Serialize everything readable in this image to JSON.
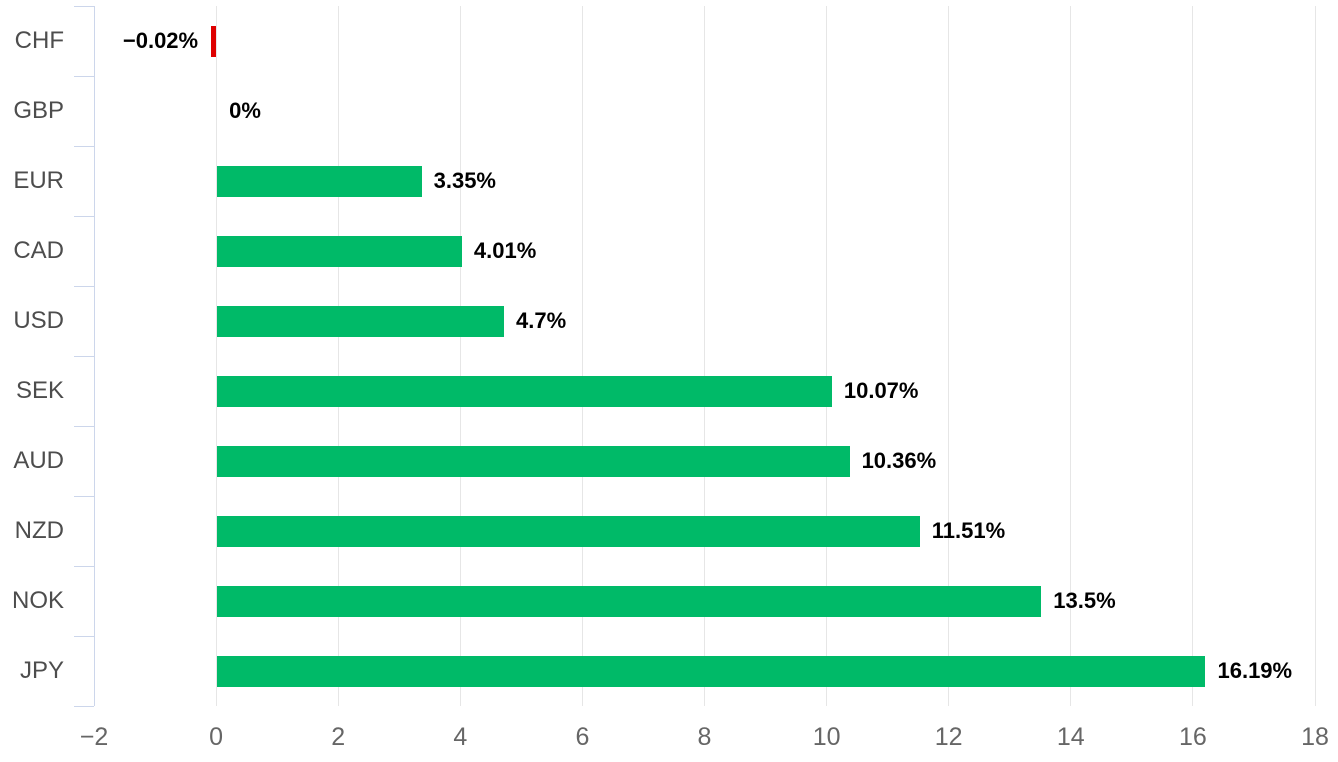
{
  "chart_data": {
    "type": "bar",
    "orientation": "horizontal",
    "title": "",
    "xlabel": "",
    "ylabel": "",
    "categories": [
      "CHF",
      "GBP",
      "EUR",
      "CAD",
      "USD",
      "SEK",
      "AUD",
      "NZD",
      "NOK",
      "JPY"
    ],
    "values": [
      -0.02,
      0,
      3.35,
      4.01,
      4.7,
      10.07,
      10.36,
      11.51,
      13.5,
      16.19
    ],
    "value_labels": [
      "−0.02%",
      "0%",
      "3.35%",
      "4.01%",
      "4.7%",
      "10.07%",
      "10.36%",
      "11.51%",
      "13.5%",
      "16.19%"
    ],
    "x_ticks": [
      -2,
      0,
      2,
      4,
      6,
      8,
      10,
      12,
      14,
      16,
      18
    ],
    "x_tick_labels": [
      "−2",
      "0",
      "2",
      "4",
      "6",
      "8",
      "10",
      "12",
      "14",
      "16",
      "18"
    ],
    "xlim": [
      -2,
      18
    ],
    "grid": true,
    "legend": false,
    "colors": {
      "bar_positive": "#00ba68",
      "bar_negative": "#de0000",
      "gridline": "#e6e6e6",
      "axis_line": "#ccd6eb",
      "category_label": "#4d4d4d",
      "tick_label": "#666666",
      "value_label": "#000000",
      "background": "#ffffff"
    }
  }
}
